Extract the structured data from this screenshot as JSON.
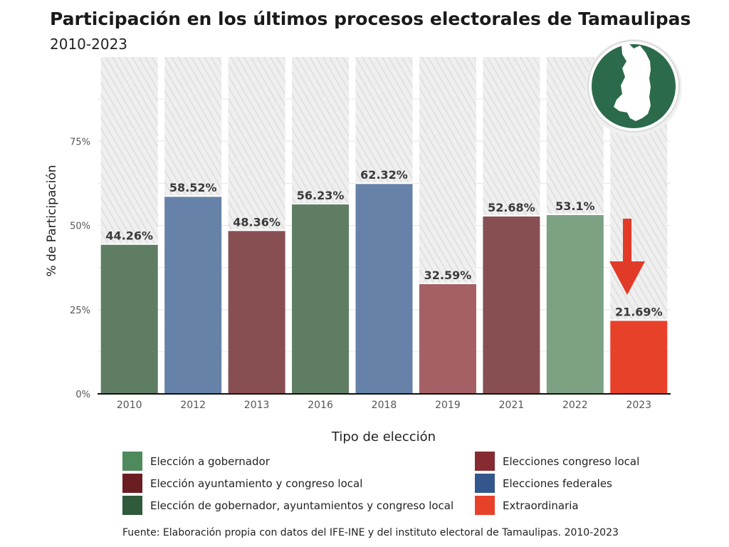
{
  "title": "Participación en los últimos procesos electorales de Tamaulipas",
  "subtitle": "2010-2023",
  "source": "Fuente: Elaboración propia con datos del IFE-INE y del instituto electoral de Tamaulipas. 2010-2023",
  "colors": {
    "highlight_label": "#111111",
    "arrow": "#e23a28",
    "logo_fill": "#2b6a4a"
  },
  "chart_data": {
    "type": "bar",
    "xlabel": "Tipo de elección",
    "ylabel": "% de Participación",
    "ylim": [
      0,
      100
    ],
    "yticks": [
      "0%",
      "25%",
      "50%",
      "75%"
    ],
    "ytick_values": [
      0,
      25,
      50,
      75
    ],
    "grid": true,
    "categories": [
      "2010",
      "2012",
      "2013",
      "2016",
      "2018",
      "2019",
      "2021",
      "2022",
      "2023"
    ],
    "values": [
      44.26,
      58.52,
      48.36,
      56.23,
      62.32,
      32.59,
      52.68,
      53.1,
      21.69
    ],
    "data_labels": [
      "44.26%",
      "58.52%",
      "48.36%",
      "56.23%",
      "62.32%",
      "32.59%",
      "52.68%",
      "53.1%",
      "21.69%"
    ],
    "bar_colors": [
      "#5f7d63",
      "#6682a8",
      "#874f52",
      "#5f7d63",
      "#6682a8",
      "#a46064",
      "#874f52",
      "#7ca283",
      "#e8412a"
    ],
    "highlight_category": "2023",
    "legend": {
      "placement": "bottom",
      "items": [
        {
          "label": "Elección a gobernador",
          "color": "#4f8a5c"
        },
        {
          "label": "Elecciones congreso local",
          "color": "#862b32"
        },
        {
          "label": "Elección ayuntamiento y congreso local",
          "color": "#6a1e22"
        },
        {
          "label": "Elecciones federales",
          "color": "#33578c"
        },
        {
          "label": "Elección de gobernador, ayuntamientos y congreso local",
          "color": "#2f5a3b"
        },
        {
          "label": "Extraordinaria",
          "color": "#e8412a"
        }
      ]
    }
  }
}
